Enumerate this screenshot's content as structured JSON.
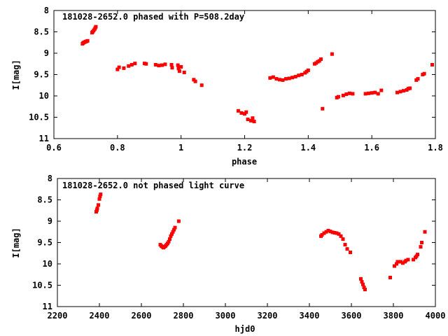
{
  "chart_data": [
    {
      "type": "scatter",
      "title": "181028-2652.0 phased with P=508.2day",
      "xlabel": "phase",
      "ylabel": "I[mag]",
      "xlim": [
        0.6,
        1.8
      ],
      "ylim": [
        8,
        11
      ],
      "y_inverted": true,
      "xticks": [
        0.6,
        0.8,
        1,
        1.2,
        1.4,
        1.6,
        1.8
      ],
      "xtick_labels": [
        "0.6",
        "0.8",
        "1",
        "1.2",
        "1.4",
        "1.6",
        "1.8"
      ],
      "yticks": [
        8,
        8.5,
        9,
        9.5,
        10,
        10.5,
        11
      ],
      "ytick_labels": [
        "8",
        "8.5",
        "9",
        "9.5",
        "10",
        "10.5",
        "11"
      ],
      "color": "#ff0000",
      "series": [
        {
          "points": [
            [
              0.69,
              8.78
            ],
            [
              0.692,
              8.76
            ],
            [
              0.694,
              8.75
            ],
            [
              0.697,
              8.74
            ],
            [
              0.7,
              8.73
            ],
            [
              0.703,
              8.72
            ],
            [
              0.706,
              8.71
            ],
            [
              0.72,
              8.52
            ],
            [
              0.722,
              8.5
            ],
            [
              0.725,
              8.47
            ],
            [
              0.728,
              8.44
            ],
            [
              0.73,
              8.41
            ],
            [
              0.732,
              8.38
            ],
            [
              0.8,
              9.38
            ],
            [
              0.805,
              9.33
            ],
            [
              0.82,
              9.35
            ],
            [
              0.835,
              9.3
            ],
            [
              0.845,
              9.27
            ],
            [
              0.855,
              9.24
            ],
            [
              0.885,
              9.24
            ],
            [
              0.89,
              9.25
            ],
            [
              0.92,
              9.27
            ],
            [
              0.93,
              9.29
            ],
            [
              0.94,
              9.28
            ],
            [
              0.95,
              9.26
            ],
            [
              0.97,
              9.27
            ],
            [
              0.972,
              9.34
            ],
            [
              0.99,
              9.28
            ],
            [
              0.992,
              9.36
            ],
            [
              0.995,
              9.42
            ],
            [
              1.0,
              9.32
            ],
            [
              1.01,
              9.45
            ],
            [
              1.04,
              9.62
            ],
            [
              1.045,
              9.66
            ],
            [
              1.065,
              9.75
            ],
            [
              1.18,
              10.35
            ],
            [
              1.19,
              10.4
            ],
            [
              1.2,
              10.42
            ],
            [
              1.205,
              10.38
            ],
            [
              1.21,
              10.55
            ],
            [
              1.22,
              10.58
            ],
            [
              1.225,
              10.52
            ],
            [
              1.23,
              10.6
            ],
            [
              1.28,
              9.58
            ],
            [
              1.29,
              9.56
            ],
            [
              1.3,
              9.6
            ],
            [
              1.31,
              9.62
            ],
            [
              1.32,
              9.63
            ],
            [
              1.33,
              9.6
            ],
            [
              1.34,
              9.59
            ],
            [
              1.35,
              9.57
            ],
            [
              1.36,
              9.55
            ],
            [
              1.37,
              9.52
            ],
            [
              1.38,
              9.5
            ],
            [
              1.39,
              9.46
            ],
            [
              1.395,
              9.43
            ],
            [
              1.4,
              9.4
            ],
            [
              1.42,
              9.25
            ],
            [
              1.425,
              9.23
            ],
            [
              1.43,
              9.2
            ],
            [
              1.435,
              9.18
            ],
            [
              1.44,
              9.14
            ],
            [
              1.445,
              10.3
            ],
            [
              1.475,
              9.02
            ],
            [
              1.49,
              10.04
            ],
            [
              1.495,
              10.02
            ],
            [
              1.51,
              9.99
            ],
            [
              1.52,
              9.96
            ],
            [
              1.53,
              9.94
            ],
            [
              1.54,
              9.95
            ],
            [
              1.58,
              9.95
            ],
            [
              1.59,
              9.94
            ],
            [
              1.6,
              9.93
            ],
            [
              1.61,
              9.92
            ],
            [
              1.62,
              9.95
            ],
            [
              1.63,
              9.87
            ],
            [
              1.68,
              9.92
            ],
            [
              1.69,
              9.9
            ],
            [
              1.7,
              9.88
            ],
            [
              1.71,
              9.86
            ],
            [
              1.715,
              9.83
            ],
            [
              1.72,
              9.82
            ],
            [
              1.74,
              9.63
            ],
            [
              1.745,
              9.6
            ],
            [
              1.76,
              9.5
            ],
            [
              1.765,
              9.48
            ],
            [
              1.79,
              9.27
            ]
          ]
        }
      ]
    },
    {
      "type": "scatter",
      "title": "181028-2652.0 not phased light curve",
      "xlabel": "hjd0",
      "ylabel": "I[mag]",
      "xlim": [
        2200,
        4000
      ],
      "ylim": [
        8,
        11
      ],
      "y_inverted": true,
      "xticks": [
        2200,
        2400,
        2600,
        2800,
        3000,
        3200,
        3400,
        3600,
        3800,
        4000
      ],
      "xtick_labels": [
        "2200",
        "2400",
        "2600",
        "2800",
        "3000",
        "3200",
        "3400",
        "3600",
        "3800",
        "4000"
      ],
      "yticks": [
        8,
        8.5,
        9,
        9.5,
        10,
        10.5,
        11
      ],
      "ytick_labels": [
        "8",
        "8.5",
        "9",
        "9.5",
        "10",
        "10.5",
        "11"
      ],
      "color": "#ff0000",
      "series": [
        {
          "points": [
            [
              2385,
              8.78
            ],
            [
              2388,
              8.74
            ],
            [
              2390,
              8.7
            ],
            [
              2395,
              8.62
            ],
            [
              2400,
              8.48
            ],
            [
              2403,
              8.42
            ],
            [
              2406,
              8.37
            ],
            [
              2690,
              9.55
            ],
            [
              2695,
              9.58
            ],
            [
              2700,
              9.6
            ],
            [
              2705,
              9.62
            ],
            [
              2710,
              9.6
            ],
            [
              2715,
              9.58
            ],
            [
              2720,
              9.55
            ],
            [
              2725,
              9.52
            ],
            [
              2730,
              9.48
            ],
            [
              2735,
              9.42
            ],
            [
              2740,
              9.35
            ],
            [
              2745,
              9.3
            ],
            [
              2750,
              9.25
            ],
            [
              2755,
              9.2
            ],
            [
              2760,
              9.15
            ],
            [
              2778,
              9.0
            ],
            [
              3455,
              9.35
            ],
            [
              3460,
              9.32
            ],
            [
              3470,
              9.28
            ],
            [
              3480,
              9.25
            ],
            [
              3490,
              9.22
            ],
            [
              3500,
              9.24
            ],
            [
              3510,
              9.26
            ],
            [
              3520,
              9.27
            ],
            [
              3530,
              9.28
            ],
            [
              3540,
              9.3
            ],
            [
              3550,
              9.35
            ],
            [
              3560,
              9.42
            ],
            [
              3570,
              9.55
            ],
            [
              3580,
              9.65
            ],
            [
              3595,
              9.73
            ],
            [
              3645,
              10.35
            ],
            [
              3650,
              10.42
            ],
            [
              3655,
              10.48
            ],
            [
              3660,
              10.55
            ],
            [
              3665,
              10.6
            ],
            [
              3785,
              10.32
            ],
            [
              3805,
              10.05
            ],
            [
              3815,
              10.0
            ],
            [
              3820,
              9.95
            ],
            [
              3835,
              9.95
            ],
            [
              3845,
              9.98
            ],
            [
              3855,
              9.95
            ],
            [
              3860,
              9.92
            ],
            [
              3870,
              9.9
            ],
            [
              3895,
              9.9
            ],
            [
              3905,
              9.85
            ],
            [
              3910,
              9.82
            ],
            [
              3915,
              9.78
            ],
            [
              3930,
              9.6
            ],
            [
              3935,
              9.5
            ],
            [
              3950,
              9.25
            ]
          ]
        }
      ]
    }
  ]
}
